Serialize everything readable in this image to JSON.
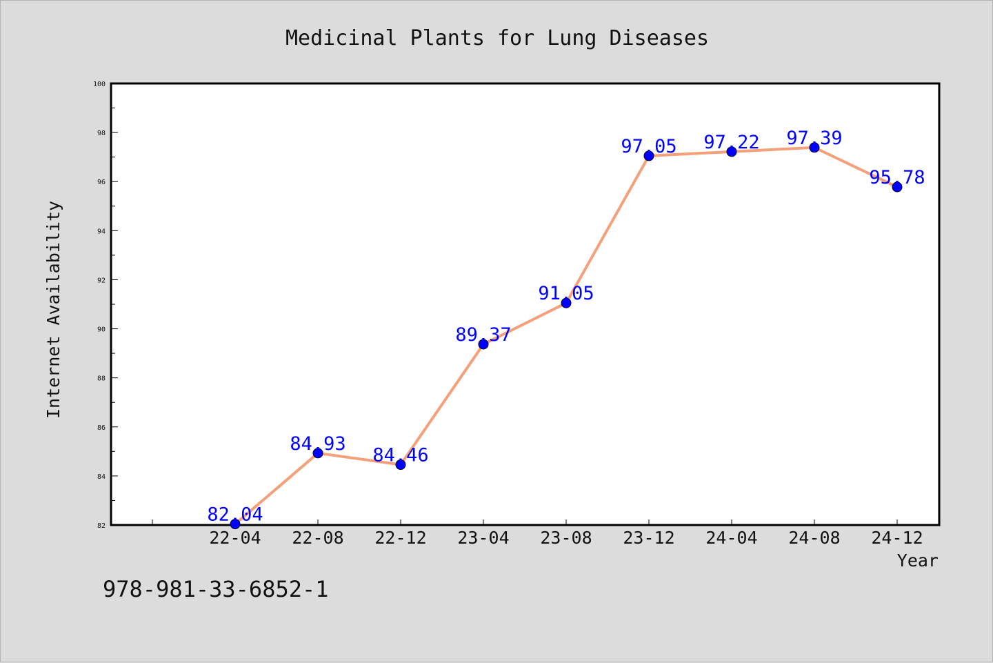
{
  "chart_data": {
    "type": "line",
    "title": "Medicinal Plants for Lung Diseases",
    "xlabel": "Year",
    "ylabel": "Internet Availability",
    "categories": [
      "22-04",
      "22-08",
      "22-12",
      "23-04",
      "23-08",
      "23-12",
      "24-04",
      "24-08",
      "24-12"
    ],
    "values": [
      82.04,
      84.93,
      84.46,
      89.37,
      91.05,
      97.05,
      97.22,
      97.39,
      95.78
    ],
    "value_labels": [
      "82.04",
      "84.93",
      "84.46",
      "89.37",
      "91.05",
      "97.05",
      "97.22",
      "97.39",
      "95.78"
    ],
    "ylim": [
      82,
      100
    ],
    "yticks": [
      "82",
      "84",
      "86",
      "88",
      "90",
      "92",
      "94",
      "96",
      "98",
      "100"
    ],
    "line_color": "#f4a07a",
    "marker_color": "#0000ff",
    "label_color": "#0000ff",
    "grid": false,
    "legend": false
  },
  "footer_text": "978-981-33-6852-1"
}
